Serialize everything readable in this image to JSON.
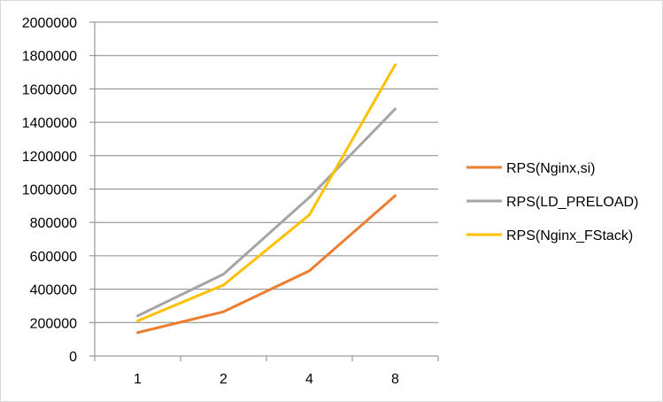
{
  "chart_data": {
    "type": "line",
    "categories": [
      "1",
      "2",
      "4",
      "8"
    ],
    "series": [
      {
        "name": "RPS(Nginx,si)",
        "color": "#ED7D31",
        "values": [
          140000,
          265000,
          510000,
          960000
        ]
      },
      {
        "name": "RPS(LD_PRELOAD)",
        "color": "#A5A5A5",
        "values": [
          240000,
          490000,
          950000,
          1480000
        ]
      },
      {
        "name": "RPS(Nginx_FStack)",
        "color": "#FFC000",
        "values": [
          210000,
          425000,
          845000,
          1745000
        ]
      }
    ],
    "ylim": [
      0,
      2000000
    ],
    "yticks": [
      "0",
      "200000",
      "400000",
      "600000",
      "800000",
      "1000000",
      "1200000",
      "1400000",
      "1600000",
      "1800000",
      "2000000"
    ],
    "grid": "horizontal",
    "legend_position": "right",
    "gridline_color": "#868686"
  }
}
